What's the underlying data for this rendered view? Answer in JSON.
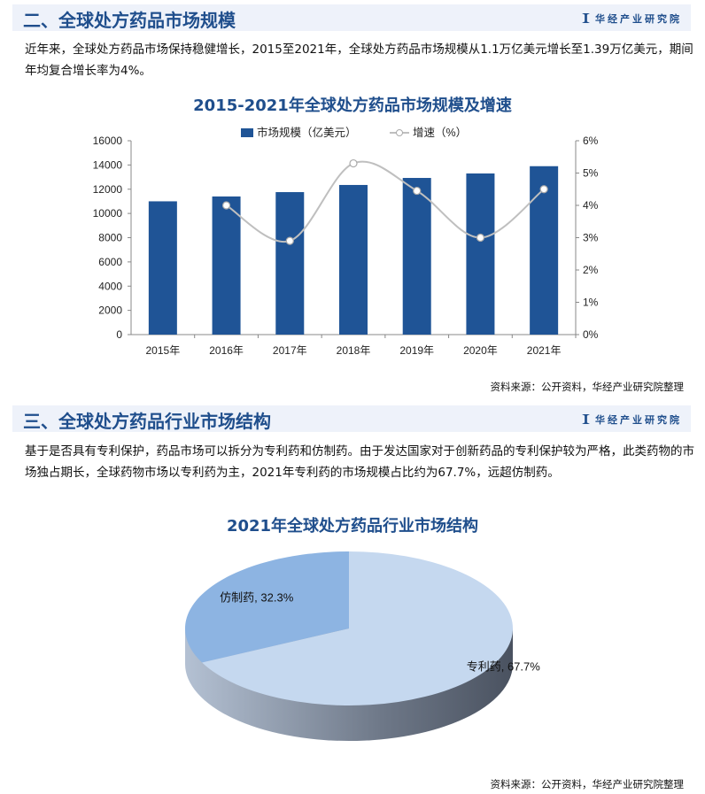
{
  "section2": {
    "title": "二、全球处方药品市场规模",
    "logo": "华经产业研究院",
    "paragraph": "近年来，全球处方药品市场保持稳健增长，2015至2021年，全球处方药品市场规模从1.1万亿美元增长至1.39万亿美元，期间年均复合增长率为4%。",
    "source": "资料来源：公开资料，华经产业研究院整理"
  },
  "section3": {
    "title": "三、全球处方药品行业市场结构",
    "logo": "华经产业研究院",
    "paragraph": "基于是否具有专利保护，药品市场可以拆分为专利药和仿制药。由于发达国家对于创新药品的专利保护较为严格，此类药物的市场独占期长，全球药物市场以专利药为主，2021年专利药的市场规模占比约为67.7%，远超仿制药。",
    "source": "资料来源：公开资料，华经产业研究院整理"
  },
  "chart_data": [
    {
      "type": "bar",
      "title": "2015-2021年全球处方药品市场规模及增速",
      "categories": [
        "2015年",
        "2016年",
        "2017年",
        "2018年",
        "2019年",
        "2020年",
        "2021年"
      ],
      "series": [
        {
          "name": "市场规模（亿美元）",
          "type": "bar",
          "axis": "left",
          "values": [
            11000,
            11400,
            11760,
            12350,
            12930,
            13300,
            13900
          ],
          "color": "#1f5496"
        },
        {
          "name": "增速（%）",
          "type": "line",
          "axis": "right",
          "values": [
            null,
            4.0,
            2.9,
            5.3,
            4.45,
            3.0,
            4.5
          ],
          "color": "#bfbfbf"
        }
      ],
      "ylim": [
        0,
        16000
      ],
      "yticks": [
        "0",
        "2000",
        "4000",
        "6000",
        "8000",
        "10000",
        "12000",
        "14000",
        "16000"
      ],
      "y2lim": [
        0,
        6
      ],
      "y2ticks": [
        "0%",
        "1%",
        "2%",
        "3%",
        "4%",
        "5%",
        "6%"
      ],
      "legend": "top-center"
    },
    {
      "type": "pie",
      "title": "2021年全球处方药品行业市场结构",
      "slices": [
        {
          "label": "仿制药",
          "value": 32.3,
          "text": "仿制药, 32.3%",
          "color": "#8db4e2"
        },
        {
          "label": "专利药",
          "value": 67.7,
          "text": "专利药, 67.7%",
          "color": "#c5d8ef"
        }
      ]
    }
  ]
}
